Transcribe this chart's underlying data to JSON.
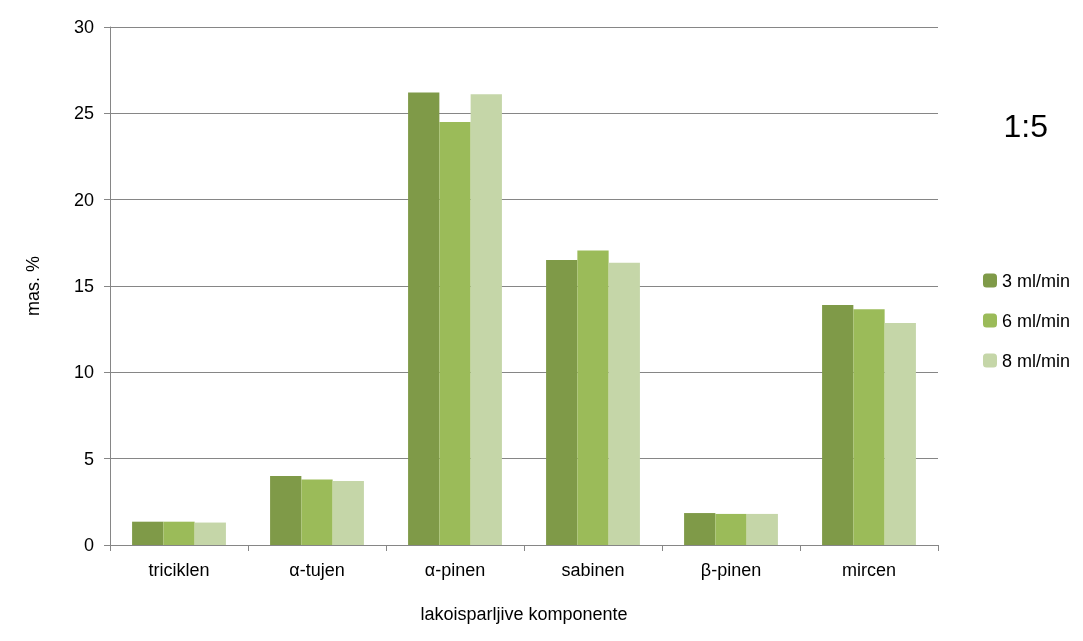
{
  "chart_data": {
    "type": "bar",
    "xlabel": "lakoisparljive komponente",
    "ylabel": "mas. %",
    "categories": [
      "triciklen",
      "α-tujen",
      "α-pinen",
      "sabinen",
      "β-pinen",
      "mircen"
    ],
    "series": [
      {
        "name": "3 ml/min",
        "color": "#7f9a48",
        "values": [
          1.35,
          4.0,
          26.2,
          16.5,
          1.85,
          13.9
        ]
      },
      {
        "name": "6 ml/min",
        "color": "#9bbb59",
        "values": [
          1.35,
          3.8,
          24.5,
          17.05,
          1.8,
          13.65
        ]
      },
      {
        "name": "8 ml/min",
        "color": "#c5d6a8",
        "values": [
          1.3,
          3.7,
          26.1,
          16.35,
          1.8,
          12.85
        ]
      }
    ],
    "ylim": [
      0,
      30
    ],
    "yticks": [
      0,
      5,
      10,
      15,
      20,
      25,
      30
    ],
    "grid": "y",
    "legend": "right",
    "annotations": [
      "1:5"
    ]
  }
}
